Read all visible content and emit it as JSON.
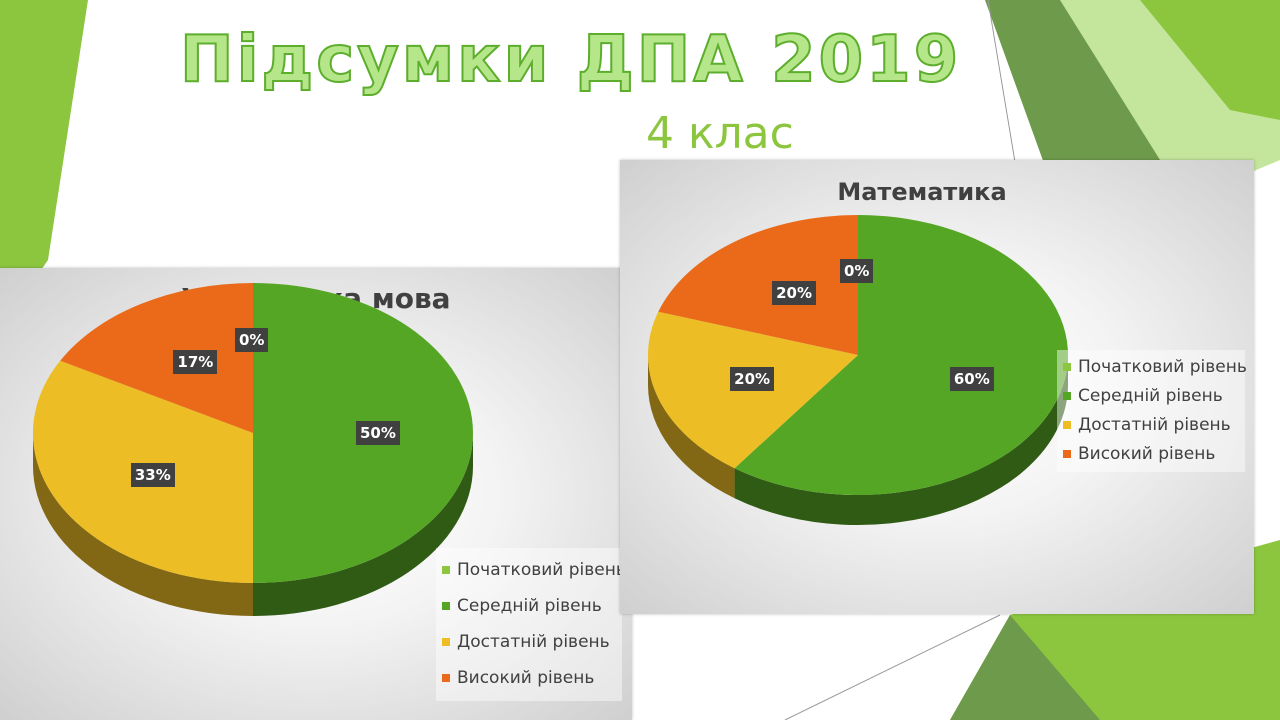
{
  "slide": {
    "title": "Підсумки ДПА 2019",
    "subtitle": "4 клас"
  },
  "colors": {
    "background_green": "#8cc63f",
    "pale_green": "#c4e59c",
    "dark_green": "#6e9a4c",
    "initial": "#8cc63f",
    "middle": "#56a625",
    "sufficient": "#ecbd24",
    "high": "#ea6a19",
    "label_box": "#404040"
  },
  "chart_data": [
    {
      "type": "pie",
      "title": "Українська мова",
      "categories": [
        "Початковий рівень",
        "Середній рівень",
        "Достатній рівень",
        "Високий рівень"
      ],
      "values": [
        0,
        50,
        33,
        17
      ],
      "data_labels": [
        "0%",
        "50%",
        "33%",
        "17%"
      ],
      "colors": [
        "#8cc63f",
        "#56a625",
        "#ecbd24",
        "#ea6a19"
      ],
      "style": "3d",
      "legend_position": "bottom-right"
    },
    {
      "type": "pie",
      "title": "Математика",
      "categories": [
        "Початковий рівень",
        "Середній рівень",
        "Достатній рівень",
        "Високий рівень"
      ],
      "values": [
        0,
        60,
        20,
        20
      ],
      "data_labels": [
        "0%",
        "60%",
        "20%",
        "20%"
      ],
      "colors": [
        "#8cc63f",
        "#56a625",
        "#ecbd24",
        "#ea6a19"
      ],
      "style": "3d",
      "legend_position": "right"
    }
  ]
}
